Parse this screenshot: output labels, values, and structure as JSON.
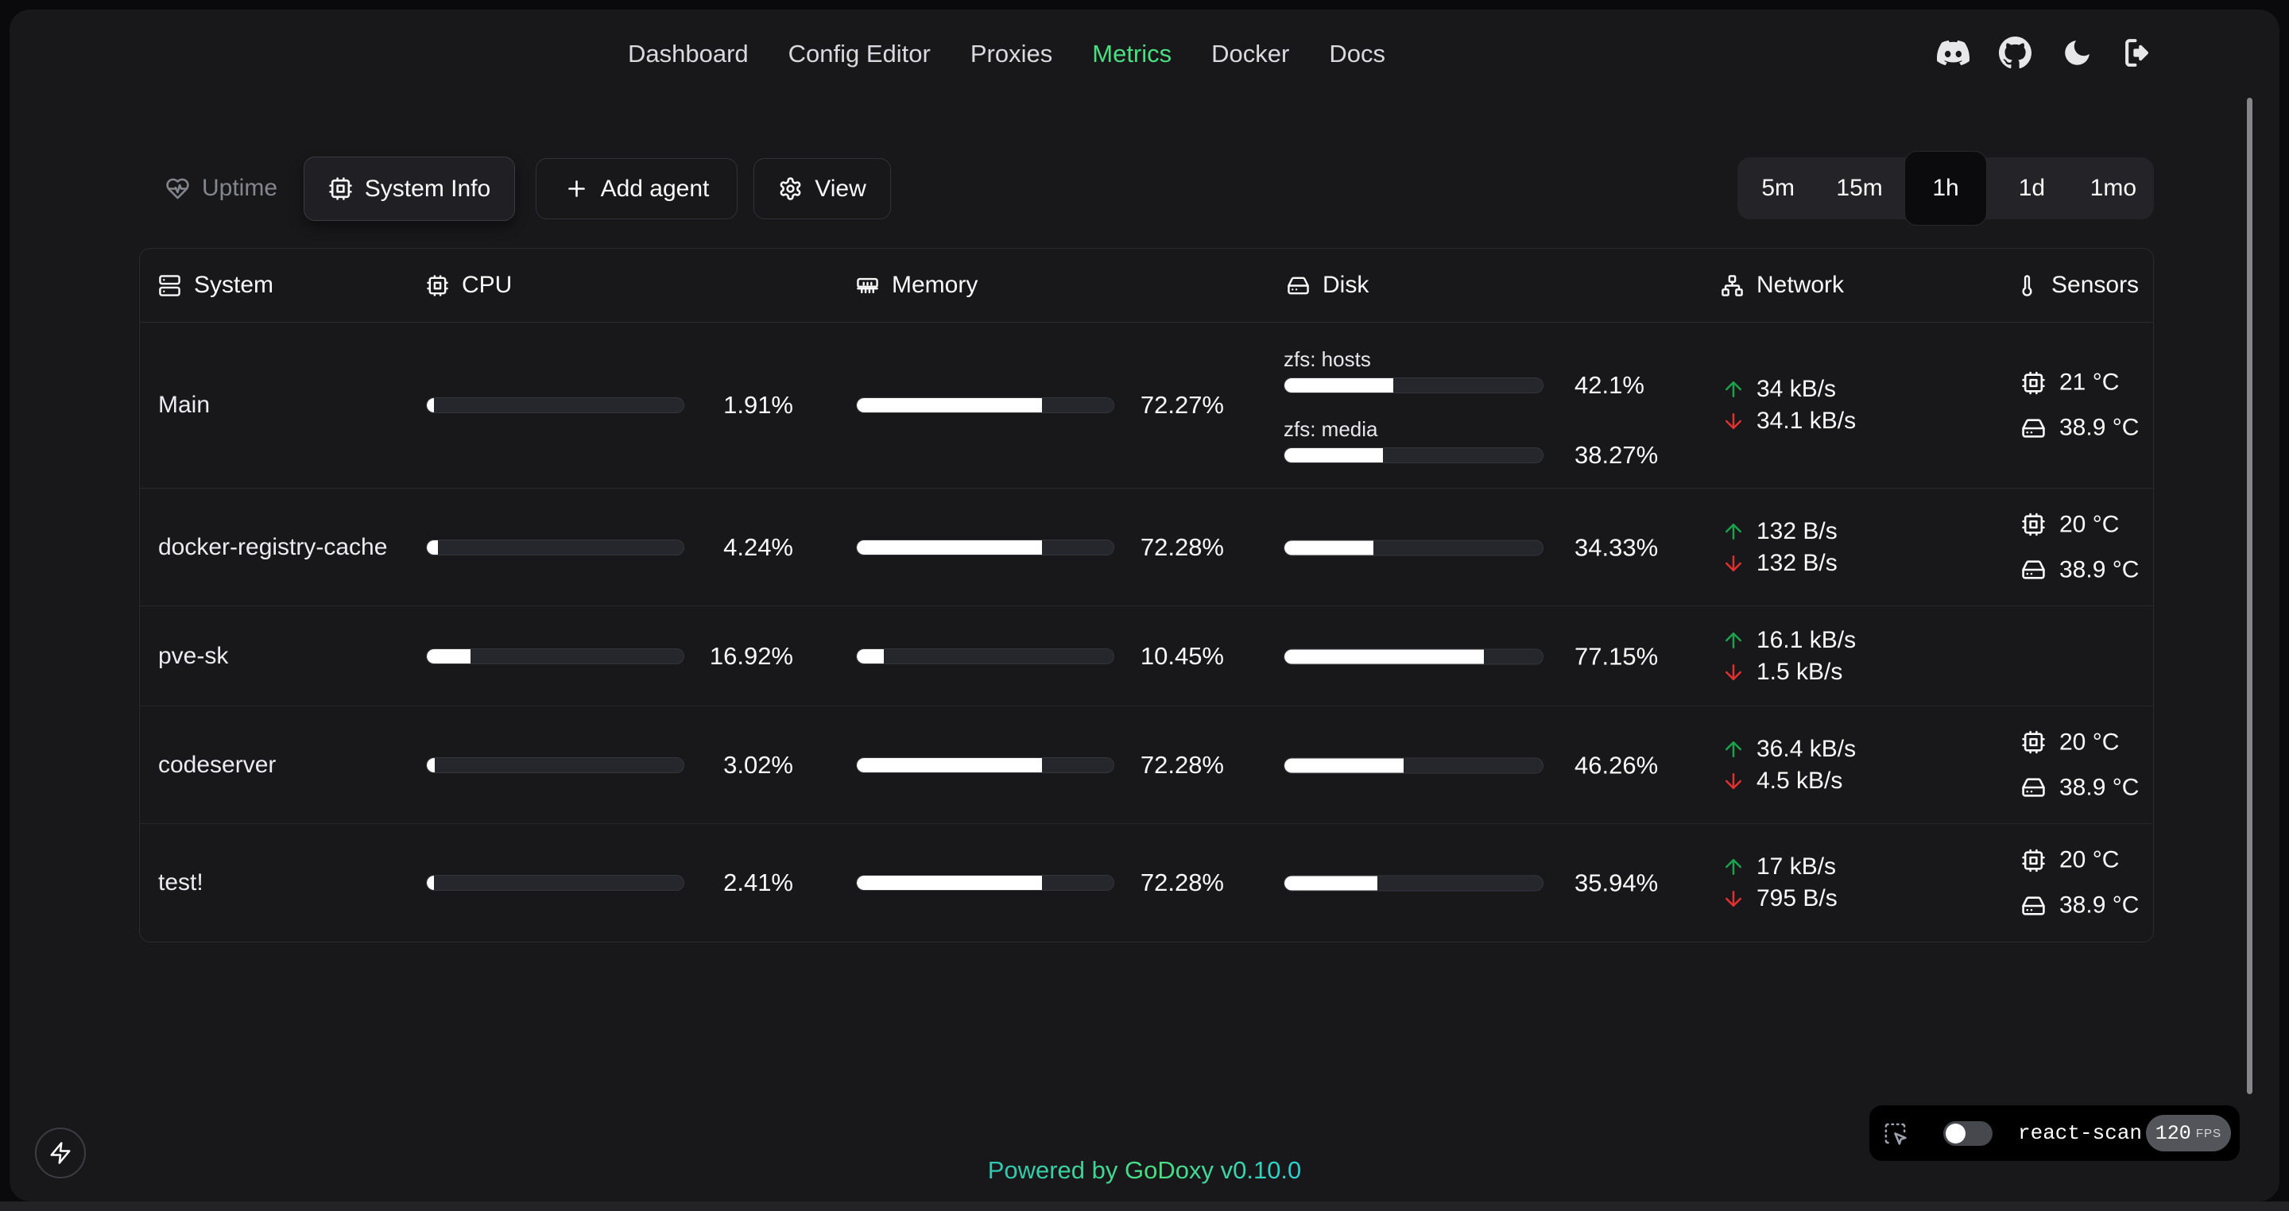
{
  "nav": {
    "items": [
      {
        "label": "Dashboard",
        "active": false
      },
      {
        "label": "Config Editor",
        "active": false
      },
      {
        "label": "Proxies",
        "active": false
      },
      {
        "label": "Metrics",
        "active": true
      },
      {
        "label": "Docker",
        "active": false
      },
      {
        "label": "Docs",
        "active": false
      }
    ],
    "icons": [
      "discord",
      "github",
      "dark-mode",
      "logout"
    ]
  },
  "toolbar": {
    "uptime_label": "Uptime",
    "system_info_label": "System Info",
    "add_agent_label": "Add agent",
    "view_label": "View"
  },
  "time_range": {
    "options": [
      "5m",
      "15m",
      "1h",
      "1d",
      "1mo"
    ],
    "selected": "1h"
  },
  "table": {
    "columns": [
      {
        "id": "system",
        "label": "System",
        "icon": "server"
      },
      {
        "id": "cpu",
        "label": "CPU",
        "icon": "cpu"
      },
      {
        "id": "memory",
        "label": "Memory",
        "icon": "memory"
      },
      {
        "id": "disk",
        "label": "Disk",
        "icon": "drive"
      },
      {
        "id": "network",
        "label": "Network",
        "icon": "network"
      },
      {
        "id": "sensors",
        "label": "Sensors",
        "icon": "thermometer"
      }
    ],
    "rows": [
      {
        "system": "Main",
        "cpu": {
          "value": 1.91,
          "text": "1.91%"
        },
        "memory": {
          "value": 72.27,
          "text": "72.27%"
        },
        "disks": [
          {
            "label": "zfs: hosts",
            "value": 42.1,
            "text": "42.1%"
          },
          {
            "label": "zfs: media",
            "value": 38.27,
            "text": "38.27%"
          }
        ],
        "network": {
          "up": "34 kB/s",
          "down": "34.1 kB/s"
        },
        "sensors": [
          {
            "icon": "cpu",
            "text": "21 °C"
          },
          {
            "icon": "drive",
            "text": "38.9 °C"
          }
        ]
      },
      {
        "system": "docker-registry-cache",
        "cpu": {
          "value": 4.24,
          "text": "4.24%"
        },
        "memory": {
          "value": 72.28,
          "text": "72.28%"
        },
        "disks": [
          {
            "value": 34.33,
            "text": "34.33%"
          }
        ],
        "network": {
          "up": "132 B/s",
          "down": "132 B/s"
        },
        "sensors": [
          {
            "icon": "cpu",
            "text": "20 °C"
          },
          {
            "icon": "drive",
            "text": "38.9 °C"
          }
        ]
      },
      {
        "system": "pve-sk",
        "cpu": {
          "value": 16.92,
          "text": "16.92%"
        },
        "memory": {
          "value": 10.45,
          "text": "10.45%"
        },
        "disks": [
          {
            "value": 77.15,
            "text": "77.15%"
          }
        ],
        "network": {
          "up": "16.1 kB/s",
          "down": "1.5 kB/s"
        },
        "sensors": []
      },
      {
        "system": "codeserver",
        "cpu": {
          "value": 3.02,
          "text": "3.02%"
        },
        "memory": {
          "value": 72.28,
          "text": "72.28%"
        },
        "disks": [
          {
            "value": 46.26,
            "text": "46.26%"
          }
        ],
        "network": {
          "up": "36.4 kB/s",
          "down": "4.5 kB/s"
        },
        "sensors": [
          {
            "icon": "cpu",
            "text": "20 °C"
          },
          {
            "icon": "drive",
            "text": "38.9 °C"
          }
        ]
      },
      {
        "system": "test!",
        "cpu": {
          "value": 2.41,
          "text": "2.41%"
        },
        "memory": {
          "value": 72.28,
          "text": "72.28%"
        },
        "disks": [
          {
            "value": 35.94,
            "text": "35.94%"
          }
        ],
        "network": {
          "up": "17 kB/s",
          "down": "795 B/s"
        },
        "sensors": [
          {
            "icon": "cpu",
            "text": "20 °C"
          },
          {
            "icon": "drive",
            "text": "38.9 °C"
          }
        ]
      }
    ]
  },
  "footer": {
    "text": "Powered by GoDoxy v0.10.0"
  },
  "react_scan": {
    "label": "react-scan",
    "fps": "120",
    "fps_unit": "FPS",
    "toggle_on": false
  },
  "colors": {
    "accent_green": "#4ade80",
    "up_arrow": "#1ca24c",
    "down_arrow": "#e03131",
    "brand_gradient": [
      "#2fc7b5",
      "#4ade80",
      "#2ad0d4"
    ]
  }
}
